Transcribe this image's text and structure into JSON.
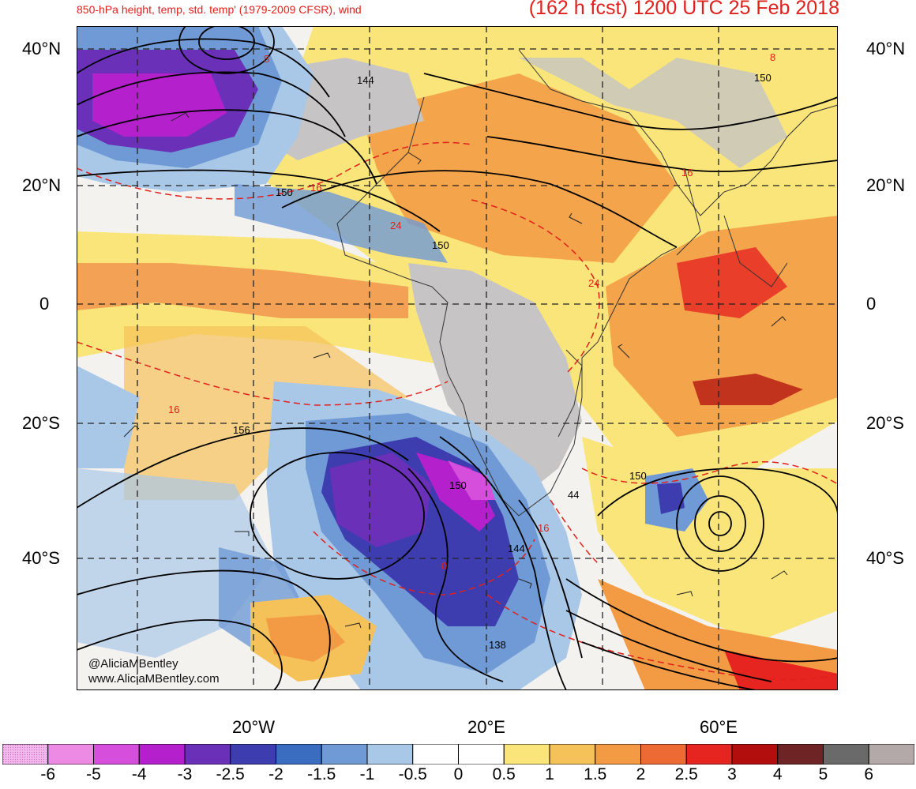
{
  "header": {
    "subtitle": "850-hPa height, temp, std. temp' (1979-2009 CFSR), wind",
    "valid": "(162 h fcst) 1200 UTC 25 Feb 2018"
  },
  "axes": {
    "lat_labels": [
      "40°N",
      "20°N",
      "0",
      "20°S",
      "40°S"
    ],
    "lon_labels": [
      "20°W",
      "20°E",
      "60°E"
    ]
  },
  "contour_labels": {
    "heights": [
      "144",
      "150",
      "150",
      "150",
      "156",
      "150",
      "150",
      "44",
      "144",
      "138"
    ],
    "temps": [
      "8",
      "16",
      "24",
      "16",
      "8",
      "24",
      "16",
      "0",
      "16"
    ]
  },
  "colorbar": {
    "labels": [
      "-6",
      "-5",
      "-4",
      "-3",
      "-2.5",
      "-2",
      "-1.5",
      "-1",
      "-0.5",
      "0",
      "0.5",
      "1",
      "1.5",
      "2",
      "2.5",
      "3",
      "4",
      "5",
      "6"
    ],
    "colors": [
      "#f3b8ec",
      "#ec8ae4",
      "#d64fdc",
      "#b420cc",
      "#6a30b8",
      "#3d3db0",
      "#3a6cc0",
      "#6f9ad6",
      "#a9c8e8",
      "#ffffff",
      "#ffffff",
      "#f9e57a",
      "#f5c25a",
      "#f39a44",
      "#ee6a34",
      "#e62420",
      "#b20e0e",
      "#6e2424",
      "#6a6a6a",
      "#b3a9a9"
    ]
  },
  "credits": {
    "handle": "@AliciaMBentley",
    "website": "www.AliciaMBentley.com"
  }
}
